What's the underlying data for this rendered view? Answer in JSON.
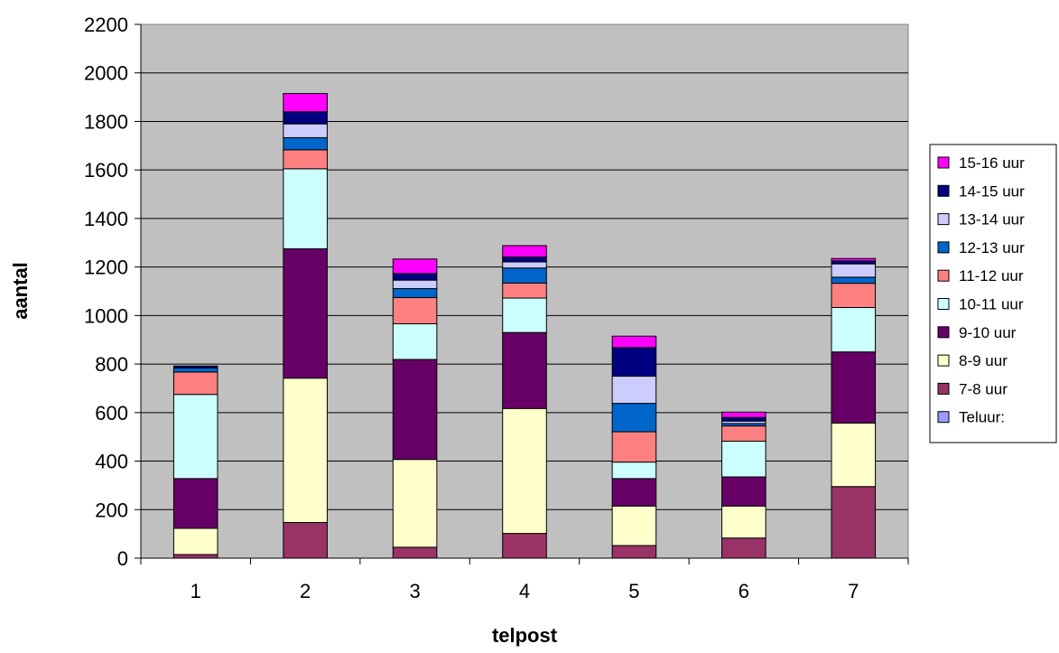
{
  "chart_data": {
    "type": "bar",
    "stacked": true,
    "title": "",
    "xlabel": "telpost",
    "ylabel": "aantal",
    "ylim": [
      0,
      2200
    ],
    "yticks": [
      0,
      200,
      400,
      600,
      800,
      1000,
      1200,
      1400,
      1600,
      1800,
      2000,
      2200
    ],
    "grid": true,
    "legend_position": "right",
    "plot_background": "#c0c0c0",
    "categories": [
      "1",
      "2",
      "3",
      "4",
      "5",
      "6",
      "7"
    ],
    "series": [
      {
        "name": "Teluur:",
        "color": "#9999ff",
        "values": [
          0,
          0,
          0,
          0,
          0,
          0,
          0
        ]
      },
      {
        "name": "7-8 uur",
        "color": "#993366",
        "values": [
          15,
          147,
          45,
          102,
          52,
          83,
          295
        ]
      },
      {
        "name": "8-9 uur",
        "color": "#ffffcc",
        "values": [
          108,
          595,
          362,
          515,
          163,
          132,
          262
        ]
      },
      {
        "name": "9-10 uur",
        "color": "#660066",
        "values": [
          205,
          533,
          412,
          313,
          113,
          120,
          293
        ]
      },
      {
        "name": "10-11 uur",
        "color": "#ccffff",
        "values": [
          347,
          330,
          147,
          142,
          68,
          147,
          183
        ]
      },
      {
        "name": "11-12 uur",
        "color": "#ff8080",
        "values": [
          92,
          78,
          108,
          62,
          125,
          63,
          100
        ]
      },
      {
        "name": "12-13 uur",
        "color": "#0066cc",
        "values": [
          17,
          50,
          37,
          62,
          117,
          10,
          25
        ]
      },
      {
        "name": "13-14 uur",
        "color": "#ccccff",
        "values": [
          0,
          57,
          35,
          25,
          112,
          10,
          55
        ]
      },
      {
        "name": "14-15 uur",
        "color": "#000080",
        "values": [
          8,
          50,
          27,
          20,
          118,
          15,
          12
        ]
      },
      {
        "name": "15-16 uur",
        "color": "#ff00ff",
        "values": [
          0,
          75,
          60,
          47,
          47,
          22,
          10
        ]
      }
    ]
  }
}
